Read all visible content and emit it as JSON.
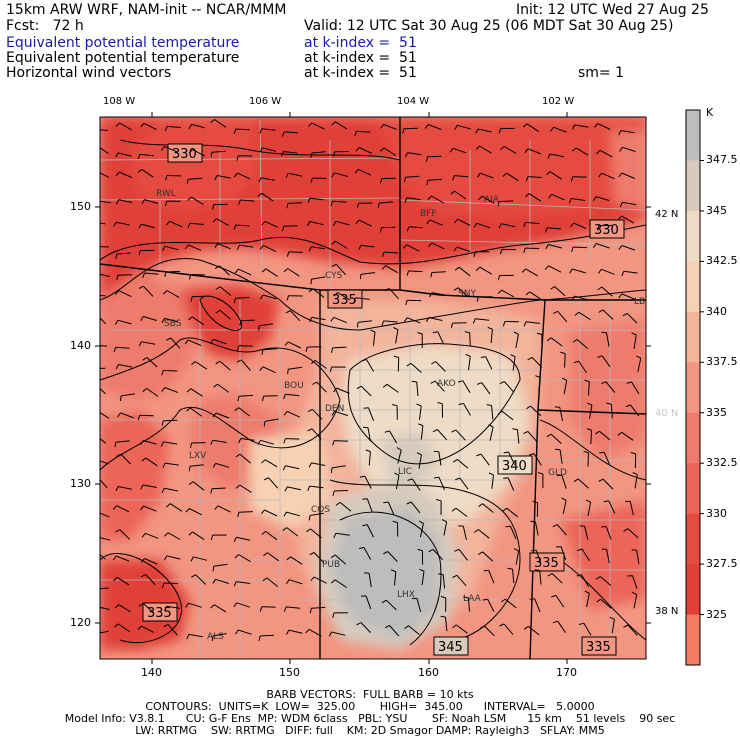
{
  "header": {
    "model_line": "15km ARW WRF, NAM-init -- NCAR/MMM",
    "init_line": "Init: 12 UTC Wed 27 Aug 25",
    "fcst_line": "Fcst:   72 h",
    "valid_line": "Valid: 12 UTC Sat 30 Aug 25 (06 MDT Sat 30 Aug 25)",
    "field1_name": "Equivalent potential temperature",
    "field1_level": "at k-index =  51",
    "field2_name": "Equivalent potential temperature",
    "field2_level": "at k-index =  51",
    "field3_name": "Horizontal wind vectors",
    "field3_level": "at k-index =  51",
    "smooth": "sm= 1"
  },
  "lon_labels": [
    "108 W",
    "106 W",
    "104 W",
    "102 W"
  ],
  "lat_labels": [
    "42 N",
    "40 N",
    "38 N"
  ],
  "grid_x_ticks": [
    "140",
    "150",
    "160",
    "170"
  ],
  "grid_y_ticks": [
    "150",
    "140",
    "130",
    "120"
  ],
  "colorbar": {
    "unit": "K",
    "levels": [
      "347.5",
      "345",
      "342.5",
      "340",
      "337.5",
      "335",
      "332.5",
      "330",
      "327.5",
      "325"
    ],
    "colors": [
      "#bdbdbd",
      "#d7cbbd",
      "#efdcc6",
      "#f7d1b4",
      "#f3b49c",
      "#f29581",
      "#ee7b6c",
      "#ec6558",
      "#e54c40",
      "#e04037",
      "#f57b60"
    ]
  },
  "stations": [
    "RWL",
    "CYS",
    "BFF",
    "AIA",
    "SNY",
    "LBF",
    "SBS",
    "BOU",
    "DEN",
    "AKO",
    "LXV",
    "LIC",
    "GLD",
    "COS",
    "PUB",
    "LHX",
    "LAA",
    "ALS"
  ],
  "contour_labels": [
    "330",
    "330",
    "335",
    "340",
    "335",
    "335",
    "345",
    "335"
  ],
  "footer": {
    "barb_line": "BARB VECTORS:  FULL BARB = 10 kts",
    "contour_line": "CONTOURS:  UNITS=K  LOW=  325.00       HIGH=  345.00      INTERVAL=   5.0000",
    "model_info_1": "Model Info: V3.8.1      CU: G-F Ens  MP: WDM 6class   PBL: YSU       SF: Noah LSM      15 km    51 levels    90 sec",
    "model_info_2": "LW: RRTMG    SW: RRTMG   DIFF: full    KM: 2D Smagor DAMP: Rayleigh3   SFLAY: MM5"
  }
}
